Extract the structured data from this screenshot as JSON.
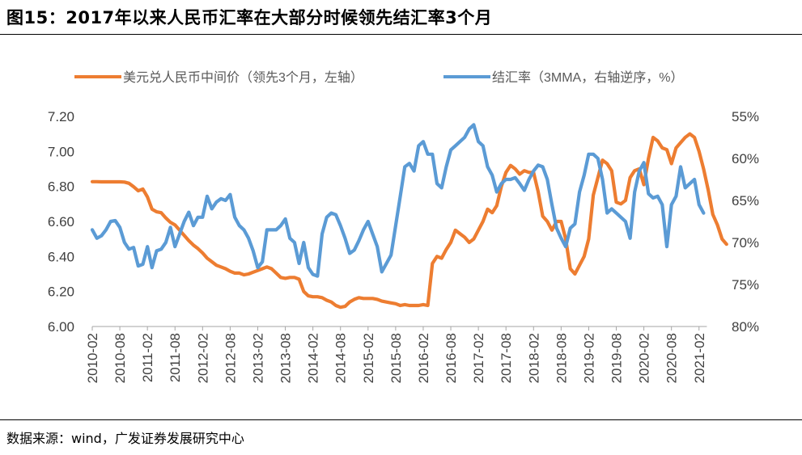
{
  "figure": {
    "title": "图15：2017年以来人民币汇率在大部分时候领先结汇率3个月",
    "source": "数据来源：wind，广发证券发展研究中心"
  },
  "chart_data": {
    "type": "line",
    "title": "图15：2017年以来人民币汇率在大部分时候领先结汇率3个月",
    "x_tick_labels": [
      "2010-02",
      "2010-08",
      "2011-02",
      "2011-08",
      "2012-02",
      "2012-08",
      "2013-02",
      "2013-08",
      "2014-02",
      "2014-08",
      "2015-02",
      "2015-08",
      "2016-02",
      "2016-08",
      "2017-02",
      "2017-08",
      "2018-02",
      "2018-08",
      "2019-02",
      "2019-08",
      "2020-02",
      "2020-08",
      "2021-02"
    ],
    "y_left": {
      "min": 6.0,
      "max": 7.2,
      "ticks": [
        "6.00",
        "6.20",
        "6.40",
        "6.60",
        "6.80",
        "7.00",
        "7.20"
      ]
    },
    "y_right": {
      "min": 55,
      "max": 80,
      "inverted": true,
      "ticks": [
        "55%",
        "60%",
        "65%",
        "70%",
        "75%",
        "80%"
      ]
    },
    "legend_position": "top",
    "series": [
      {
        "name": "美元兑人民币中间价（领先3个月，左轴）",
        "color": "#ED7D31",
        "axis": "left",
        "start": "2010-02",
        "end": "2021-03",
        "values": [
          6.827,
          6.827,
          6.826,
          6.826,
          6.826,
          6.826,
          6.826,
          6.825,
          6.818,
          6.798,
          6.775,
          6.785,
          6.74,
          6.67,
          6.655,
          6.65,
          6.62,
          6.595,
          6.58,
          6.55,
          6.52,
          6.49,
          6.465,
          6.445,
          6.42,
          6.39,
          6.37,
          6.35,
          6.34,
          6.33,
          6.315,
          6.305,
          6.305,
          6.295,
          6.3,
          6.31,
          6.32,
          6.33,
          6.34,
          6.33,
          6.305,
          6.28,
          6.275,
          6.28,
          6.28,
          6.27,
          6.2,
          6.175,
          6.17,
          6.17,
          6.165,
          6.15,
          6.14,
          6.12,
          6.11,
          6.115,
          6.14,
          6.155,
          6.165,
          6.16,
          6.16,
          6.16,
          6.155,
          6.145,
          6.14,
          6.135,
          6.13,
          6.12,
          6.125,
          6.12,
          6.12,
          6.12,
          6.125,
          6.12,
          6.36,
          6.4,
          6.39,
          6.44,
          6.48,
          6.55,
          6.53,
          6.51,
          6.48,
          6.5,
          6.55,
          6.6,
          6.67,
          6.65,
          6.69,
          6.8,
          6.88,
          6.92,
          6.9,
          6.87,
          6.89,
          6.88,
          6.88,
          6.77,
          6.63,
          6.6,
          6.55,
          6.6,
          6.6,
          6.5,
          6.33,
          6.3,
          6.35,
          6.4,
          6.5,
          6.75,
          6.85,
          6.95,
          6.93,
          6.89,
          6.71,
          6.7,
          6.72,
          6.85,
          6.89,
          6.9,
          6.81,
          6.96,
          7.08,
          7.06,
          7.02,
          7.01,
          6.93,
          7.02,
          7.05,
          7.08,
          7.1,
          7.08,
          7.0,
          6.9,
          6.78,
          6.64,
          6.58,
          6.5,
          6.47
        ]
      },
      {
        "name": "结汇率（3MMA，右轴逆序，%）",
        "color": "#5B9BD5",
        "axis": "right",
        "start": "2010-02",
        "end": "2020-12",
        "values": [
          68.5,
          69.5,
          69.2,
          68.5,
          67.5,
          67.4,
          68.2,
          70.0,
          70.8,
          70.6,
          72.8,
          72.6,
          70.5,
          73.0,
          71.0,
          70.8,
          70.0,
          68.2,
          70.5,
          69.0,
          67.5,
          66.4,
          68.0,
          67.0,
          67.0,
          64.5,
          66.0,
          65.2,
          64.8,
          65.0,
          64.3,
          67.0,
          68.0,
          68.5,
          69.5,
          71.0,
          73.0,
          72.3,
          68.5,
          68.5,
          68.5,
          68.0,
          67.2,
          69.5,
          70.0,
          72.5,
          70.0,
          73.0,
          73.8,
          74.0,
          69.0,
          67.0,
          66.5,
          66.7,
          68.0,
          69.5,
          71.3,
          70.9,
          69.8,
          68.5,
          67.5,
          69.0,
          70.5,
          73.5,
          72.5,
          71.5,
          68.0,
          64.5,
          61.0,
          60.6,
          61.5,
          58.5,
          58.0,
          59.5,
          59.5,
          63.0,
          63.5,
          61.0,
          59.0,
          58.5,
          58.0,
          57.5,
          56.5,
          56.0,
          58.0,
          58.5,
          61.0,
          62.0,
          64.0,
          63.0,
          62.5,
          62.5,
          62.3,
          63.0,
          63.8,
          62.5,
          61.5,
          60.8,
          61.0,
          62.5,
          65.5,
          68.3,
          69.5,
          70.5,
          68.3,
          67.8,
          64.0,
          62.0,
          59.5,
          59.5,
          60.0,
          62.5,
          66.5,
          66.0,
          66.5,
          67.0,
          67.5,
          69.5,
          64.0,
          61.5,
          60.5,
          64.2,
          64.7,
          64.5,
          65.5,
          70.5,
          65.5,
          64.5,
          61.0,
          63.5,
          63.0,
          62.5,
          65.5,
          66.5
        ]
      }
    ]
  }
}
